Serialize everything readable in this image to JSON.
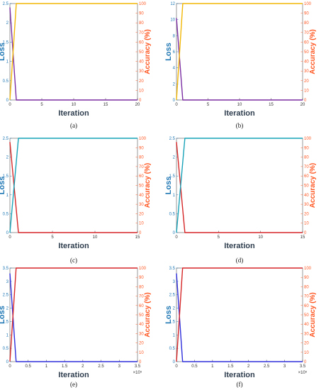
{
  "colors": {
    "loss_axis": "#1f77b4",
    "acc_axis": "#ff5722",
    "gold": "#f2b705",
    "purple": "#7b2fa3",
    "teal": "#17a2b8",
    "red": "#d62728",
    "blue": "#2f2fdc",
    "frame": "#555555"
  },
  "chart_data": [
    {
      "type": "line",
      "caption": "(a)",
      "xlabel": "Iteration",
      "ylabel_left": "Loss",
      "ylabel_right": "Accuracy (%)",
      "xlim": [
        0,
        20
      ],
      "ylim_left": [
        0,
        2.5
      ],
      "ylim_right": [
        0,
        100
      ],
      "x_ticks": [
        "0",
        "5",
        "10",
        "15",
        "20"
      ],
      "y_left_ticks": [
        "0",
        "0.5",
        "1",
        "1.5",
        "2",
        "2.5"
      ],
      "y_right_ticks": [
        "0",
        "10",
        "20",
        "30",
        "40",
        "50",
        "60",
        "70",
        "80",
        "90",
        "100"
      ],
      "x_multiplier": "",
      "series": [
        {
          "axis": "left",
          "color_key": "purple",
          "x": [
            0,
            1,
            20
          ],
          "y": [
            2.4,
            0,
            0
          ]
        },
        {
          "axis": "right",
          "color_key": "gold",
          "x": [
            0,
            1,
            20
          ],
          "y": [
            0,
            100,
            100
          ]
        }
      ]
    },
    {
      "type": "line",
      "caption": "(b)",
      "xlabel": "Iteration",
      "ylabel_left": "Loss",
      "ylabel_right": "Accuracy (%)",
      "xlim": [
        0,
        20
      ],
      "ylim_left": [
        0,
        12
      ],
      "ylim_right": [
        0,
        100
      ],
      "x_ticks": [
        "0",
        "5",
        "10",
        "15",
        "20"
      ],
      "y_left_ticks": [
        "0",
        "2",
        "4",
        "6",
        "8",
        "10",
        "12"
      ],
      "y_right_ticks": [
        "0",
        "10",
        "20",
        "30",
        "40",
        "50",
        "60",
        "70",
        "80",
        "90",
        "100"
      ],
      "x_multiplier": "",
      "series": [
        {
          "axis": "left",
          "color_key": "purple",
          "x": [
            0,
            1,
            20
          ],
          "y": [
            10.2,
            0,
            0
          ]
        },
        {
          "axis": "right",
          "color_key": "gold",
          "x": [
            0,
            1,
            20
          ],
          "y": [
            0,
            100,
            100
          ]
        }
      ]
    },
    {
      "type": "line",
      "caption": "(c)",
      "xlabel": "Iteration",
      "ylabel_left": "Loss",
      "ylabel_right": "Accuracy (%)",
      "xlim": [
        0,
        15
      ],
      "ylim_left": [
        0,
        2.5
      ],
      "ylim_right": [
        0,
        100
      ],
      "x_ticks": [
        "0",
        "5",
        "10",
        "15"
      ],
      "y_left_ticks": [
        "0",
        "0.5",
        "1",
        "1.5",
        "2",
        "2.5"
      ],
      "y_right_ticks": [
        "0",
        "10",
        "20",
        "30",
        "40",
        "50",
        "60",
        "70",
        "80",
        "90",
        "100"
      ],
      "x_multiplier": "",
      "series": [
        {
          "axis": "left",
          "color_key": "red",
          "x": [
            0,
            1,
            15
          ],
          "y": [
            2.4,
            0,
            0
          ]
        },
        {
          "axis": "right",
          "color_key": "teal",
          "x": [
            0,
            1,
            15
          ],
          "y": [
            0,
            100,
            100
          ]
        }
      ]
    },
    {
      "type": "line",
      "caption": "(d)",
      "xlabel": "Iteration",
      "ylabel_left": "Loss",
      "ylabel_right": "Accuracy (%)",
      "xlim": [
        0,
        15
      ],
      "ylim_left": [
        0,
        2.5
      ],
      "ylim_right": [
        0,
        100
      ],
      "x_ticks": [
        "0",
        "5",
        "10",
        "15"
      ],
      "y_left_ticks": [
        "0",
        "0.5",
        "1",
        "1.5",
        "2",
        "2.5"
      ],
      "y_right_ticks": [
        "0",
        "10",
        "20",
        "30",
        "40",
        "50",
        "60",
        "70",
        "80",
        "90",
        "100"
      ],
      "x_multiplier": "",
      "series": [
        {
          "axis": "left",
          "color_key": "red",
          "x": [
            0,
            1,
            15
          ],
          "y": [
            2.4,
            0,
            0
          ]
        },
        {
          "axis": "right",
          "color_key": "teal",
          "x": [
            0,
            1,
            15
          ],
          "y": [
            0,
            100,
            100
          ]
        }
      ]
    },
    {
      "type": "line",
      "caption": "(e)",
      "xlabel": "Iteration",
      "ylabel_left": "Loss",
      "ylabel_right": "Accuracy (%)",
      "xlim": [
        0,
        3.5
      ],
      "ylim_left": [
        0,
        3.5
      ],
      "ylim_right": [
        0,
        100
      ],
      "x_ticks": [
        "0",
        "0.5",
        "1",
        "1.5",
        "2",
        "2.5",
        "3",
        "3.5"
      ],
      "y_left_ticks": [
        "0",
        "0.5",
        "1",
        "1.5",
        "2",
        "2.5",
        "3",
        "3.5"
      ],
      "y_right_ticks": [
        "0",
        "10",
        "20",
        "30",
        "40",
        "50",
        "60",
        "70",
        "80",
        "90",
        "100"
      ],
      "x_multiplier": "×10⁵",
      "series": [
        {
          "axis": "left",
          "color_key": "blue",
          "x": [
            0,
            0.17,
            3.5
          ],
          "y": [
            3.3,
            0,
            0
          ]
        },
        {
          "axis": "right",
          "color_key": "red",
          "x": [
            0,
            0.17,
            3.5
          ],
          "y": [
            0,
            100,
            100
          ]
        }
      ]
    },
    {
      "type": "line",
      "caption": "(f)",
      "xlabel": "Iteration",
      "ylabel_left": "Loss",
      "ylabel_right": "Accuracy (%)",
      "xlim": [
        0,
        3.5
      ],
      "ylim_left": [
        0,
        3.5
      ],
      "ylim_right": [
        0,
        100
      ],
      "x_ticks": [
        "0",
        "0.5",
        "1",
        "1.5",
        "2",
        "2.5",
        "3",
        "3.5"
      ],
      "y_left_ticks": [
        "0",
        "0.5",
        "1",
        "1.5",
        "2",
        "2.5",
        "3",
        "3.5"
      ],
      "y_right_ticks": [
        "0",
        "10",
        "20",
        "30",
        "40",
        "50",
        "60",
        "70",
        "80",
        "90",
        "100"
      ],
      "x_multiplier": "×10⁵",
      "series": [
        {
          "axis": "left",
          "color_key": "blue",
          "x": [
            0,
            0.17,
            3.5
          ],
          "y": [
            3.3,
            0,
            0
          ]
        },
        {
          "axis": "right",
          "color_key": "red",
          "x": [
            0,
            0.17,
            3.5
          ],
          "y": [
            0,
            100,
            100
          ]
        }
      ]
    }
  ]
}
